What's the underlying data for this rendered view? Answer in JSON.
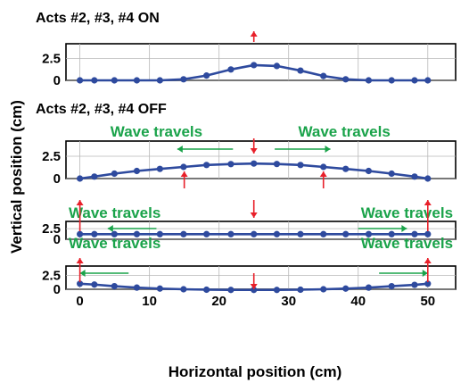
{
  "chart_data": {
    "type": "line",
    "ylabel": "Vertical  position (cm)",
    "xlabel": "Horizontal position (cm)",
    "xlim": [
      -2,
      54
    ],
    "xticks": [
      0,
      10,
      20,
      30,
      40,
      50
    ],
    "ylim": [
      0,
      4.2
    ],
    "yticks": [
      0,
      2.5
    ],
    "grid": true,
    "colors": {
      "series": "#2e4a9e",
      "wave_text": "#1aa34a",
      "actuator_arrow": "#e8202a"
    },
    "x": [
      0,
      2.08,
      4.96,
      8.18,
      11.5,
      14.9,
      18.2,
      21.7,
      25,
      28.3,
      31.7,
      35,
      38.2,
      41.5,
      44.8,
      48.1,
      50
    ],
    "panels": [
      {
        "heading": "Acts #2, #3, #4 ON",
        "values": [
          0,
          0,
          0,
          0,
          0,
          0.12,
          0.55,
          1.25,
          1.75,
          1.65,
          1.12,
          0.5,
          0.12,
          0,
          0,
          0,
          0
        ],
        "wave_labels": [],
        "wave_arrows": [],
        "actuator_arrows": [
          {
            "x": 25,
            "dir": "up"
          }
        ]
      },
      {
        "heading": "Acts #2, #3, #4 OFF",
        "values": [
          0,
          0.22,
          0.55,
          0.85,
          1.08,
          1.3,
          1.52,
          1.62,
          1.68,
          1.63,
          1.52,
          1.3,
          1.08,
          0.85,
          0.55,
          0.22,
          0
        ],
        "wave_labels": [
          {
            "text": "Wave travels",
            "x": 11
          },
          {
            "text": "Wave travels",
            "x": 38
          }
        ],
        "wave_arrows": [
          {
            "from": 22,
            "to": 14
          },
          {
            "from": 28,
            "to": 36
          }
        ],
        "actuator_arrows": [
          {
            "x": 25,
            "dir": "down"
          },
          {
            "x": 15,
            "dir": "up"
          },
          {
            "x": 35,
            "dir": "up"
          }
        ]
      },
      {
        "heading": "",
        "values": [
          1.2,
          1.2,
          1.2,
          1.2,
          1.2,
          1.2,
          1.2,
          1.2,
          1.2,
          1.2,
          1.2,
          1.2,
          1.2,
          1.2,
          1.2,
          1.2,
          1.2
        ],
        "wave_labels": [
          {
            "text": "Wave travels",
            "x": 5
          },
          {
            "text": "Wave travels",
            "x": 47
          }
        ],
        "wave_arrows": [
          {
            "from": 11,
            "to": 4
          },
          {
            "from": 40,
            "to": 47
          }
        ],
        "actuator_arrows": [
          {
            "x": 0,
            "dir": "up"
          },
          {
            "x": 25,
            "dir": "down"
          },
          {
            "x": 50,
            "dir": "up"
          }
        ]
      },
      {
        "heading": "",
        "values": [
          1,
          0.85,
          0.55,
          0.3,
          0.12,
          0,
          -0.08,
          -0.12,
          -0.12,
          -0.12,
          -0.08,
          0,
          0.12,
          0.3,
          0.55,
          0.8,
          1
        ],
        "wave_labels": [
          {
            "text": "Wave travels",
            "x": 5
          },
          {
            "text": "Wave travels",
            "x": 47
          }
        ],
        "wave_arrows": [
          {
            "from": 7,
            "to": 0
          },
          {
            "from": 43,
            "to": 50
          }
        ],
        "actuator_arrows": [
          {
            "x": 0,
            "dir": "up"
          },
          {
            "x": 25,
            "dir": "down"
          },
          {
            "x": 50,
            "dir": "up"
          }
        ]
      }
    ]
  }
}
